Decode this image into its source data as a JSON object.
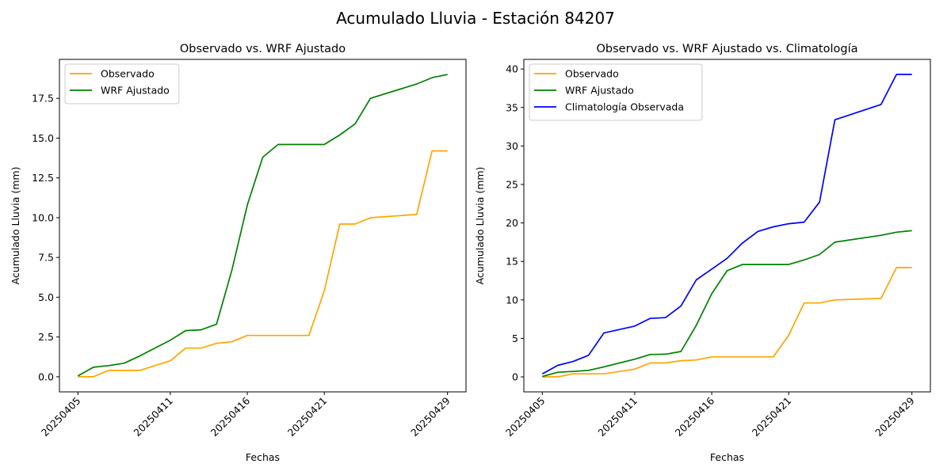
{
  "figure": {
    "title": "Acumulado Lluvia - Estación 84207"
  },
  "chart_data": [
    {
      "type": "line",
      "title": "Observado vs. WRF Ajustado",
      "xlabel": "Fechas",
      "ylabel": "Acumulado Lluvia (mm)",
      "x": [
        "20250405",
        "20250406",
        "20250407",
        "20250408",
        "20250409",
        "20250411",
        "20250412",
        "20250413",
        "20250414",
        "20250415",
        "20250416",
        "20250417",
        "20250418",
        "20250419",
        "20250420",
        "20250421",
        "20250422",
        "20250423",
        "20250424",
        "20250427",
        "20250428",
        "20250429"
      ],
      "x_ticks": [
        "20250405",
        "20250411",
        "20250416",
        "20250421",
        "20250429"
      ],
      "ylim": [
        -0.95,
        19.95
      ],
      "y_ticks": [
        0.0,
        2.5,
        5.0,
        7.5,
        10.0,
        12.5,
        15.0,
        17.5
      ],
      "y_tick_labels": [
        "0.0",
        "2.5",
        "5.0",
        "7.5",
        "10.0",
        "12.5",
        "15.0",
        "17.5"
      ],
      "grid": false,
      "legend": "upper left",
      "series": [
        {
          "name": "Observado",
          "color": "#ffa500",
          "values": [
            0.0,
            0.0,
            0.4,
            0.4,
            0.4,
            1.0,
            1.8,
            1.8,
            2.1,
            2.2,
            2.6,
            2.6,
            2.6,
            2.6,
            2.6,
            5.4,
            9.6,
            9.6,
            10.0,
            10.2,
            14.2,
            14.2
          ]
        },
        {
          "name": "WRF Ajustado",
          "color": "#008000",
          "values": [
            0.05,
            0.6,
            0.7,
            0.85,
            1.3,
            2.3,
            2.9,
            2.95,
            3.3,
            6.7,
            10.8,
            13.8,
            14.6,
            14.6,
            14.6,
            14.6,
            15.2,
            15.9,
            17.5,
            18.4,
            18.8,
            19.0
          ]
        }
      ]
    },
    {
      "type": "line",
      "title": "Observado vs. WRF Ajustado vs. Climatología",
      "xlabel": "Fechas",
      "ylabel": "Acumulado Lluvia (mm)",
      "x": [
        "20250405",
        "20250406",
        "20250407",
        "20250408",
        "20250409",
        "20250411",
        "20250412",
        "20250413",
        "20250414",
        "20250415",
        "20250416",
        "20250417",
        "20250418",
        "20250419",
        "20250420",
        "20250421",
        "20250422",
        "20250423",
        "20250424",
        "20250427",
        "20250428",
        "20250429"
      ],
      "x_ticks": [
        "20250405",
        "20250411",
        "20250416",
        "20250421",
        "20250429"
      ],
      "ylim": [
        -1.95,
        41.25
      ],
      "y_ticks": [
        0,
        5,
        10,
        15,
        20,
        25,
        30,
        35,
        40
      ],
      "y_tick_labels": [
        "0",
        "5",
        "10",
        "15",
        "20",
        "25",
        "30",
        "35",
        "40"
      ],
      "grid": false,
      "legend": "upper left",
      "series": [
        {
          "name": "Observado",
          "color": "#ffa500",
          "values": [
            0.0,
            0.0,
            0.4,
            0.4,
            0.4,
            1.0,
            1.8,
            1.8,
            2.1,
            2.2,
            2.6,
            2.6,
            2.6,
            2.6,
            2.6,
            5.4,
            9.6,
            9.6,
            10.0,
            10.2,
            14.2,
            14.2
          ]
        },
        {
          "name": "WRF Ajustado",
          "color": "#008000",
          "values": [
            0.05,
            0.6,
            0.7,
            0.85,
            1.3,
            2.3,
            2.9,
            2.95,
            3.3,
            6.7,
            10.8,
            13.8,
            14.6,
            14.6,
            14.6,
            14.6,
            15.2,
            15.9,
            17.5,
            18.4,
            18.8,
            19.0
          ]
        },
        {
          "name": "Climatología Observada",
          "color": "#0000ff",
          "values": [
            0.4,
            1.5,
            2.0,
            2.8,
            5.7,
            6.6,
            7.6,
            7.7,
            9.2,
            12.6,
            14.0,
            15.4,
            17.4,
            18.9,
            19.5,
            19.9,
            20.1,
            22.7,
            33.4,
            35.4,
            39.3,
            39.3
          ]
        }
      ]
    }
  ]
}
